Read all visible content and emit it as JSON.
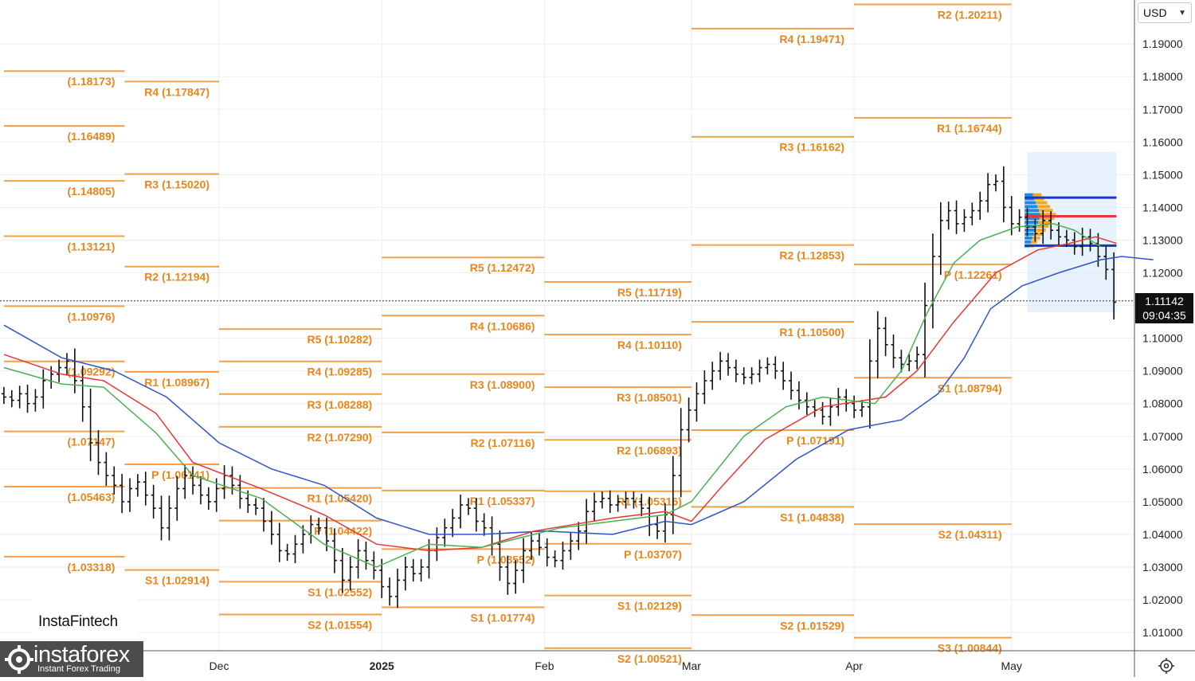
{
  "header": {
    "currency": "USD"
  },
  "current_price": {
    "value": "1.11142",
    "countdown": "09:04:35"
  },
  "branding": {
    "watermark": "InstaFintech",
    "logo_name": "instaforex",
    "logo_tagline": "Instant Forex Trading"
  },
  "colors": {
    "pivot": "#f0a04b",
    "pivot_text": "#e8861c",
    "sma_fast": "#4caf50",
    "sma_mid": "#e53935",
    "sma_slow": "#2f55c9",
    "candle": "#111111",
    "volume_profile_bg": "#d7e9fa"
  },
  "chart_data": {
    "type": "candlestick",
    "y_axis": {
      "range": [
        1.0,
        1.205
      ],
      "ticks": [
        "1.19000",
        "1.18000",
        "1.17000",
        "1.16000",
        "1.15000",
        "1.14000",
        "1.13000",
        "1.12000",
        "1.11000",
        "1.10000",
        "1.09000",
        "1.08000",
        "1.07000",
        "1.06000",
        "1.05000",
        "1.04000",
        "1.03000",
        "1.02000",
        "1.01000"
      ]
    },
    "x_axis": {
      "ticks": [
        {
          "label": "Dec",
          "day": 30,
          "bold": false
        },
        {
          "label": "2025",
          "day": 61,
          "bold": true
        },
        {
          "label": "Feb",
          "day": 92,
          "bold": false
        },
        {
          "label": "Mar",
          "day": 120,
          "bold": false
        },
        {
          "label": "Apr",
          "day": 151,
          "bold": false
        },
        {
          "label": "May",
          "day": 181,
          "bold": false
        }
      ]
    },
    "period_starts": [
      -11,
      12,
      30,
      61,
      92,
      120,
      151,
      181,
      206
    ],
    "pivots": [
      {
        "p": 0,
        "lbl": "(1.18173)",
        "v": 1.1817
      },
      {
        "p": 0,
        "lbl": "(1.16489)",
        "v": 1.1649
      },
      {
        "p": 0,
        "lbl": "(1.14805)",
        "v": 1.1481
      },
      {
        "p": 0,
        "lbl": "(1.13121)",
        "v": 1.1312
      },
      {
        "p": 0,
        "lbl": "(1.10976)",
        "v": 1.1098
      },
      {
        "p": 0,
        "lbl": "(1.09292)",
        "v": 1.0929
      },
      {
        "p": 0,
        "lbl": "(1.07147)",
        "v": 1.0715
      },
      {
        "p": 0,
        "lbl": "(1.05463)",
        "v": 1.0546
      },
      {
        "p": 0,
        "lbl": "(1.03318)",
        "v": 1.0332
      },
      {
        "p": 1,
        "lbl": "R4 (1.17847)",
        "v": 1.1785
      },
      {
        "p": 1,
        "lbl": "R3 (1.15020)",
        "v": 1.1502
      },
      {
        "p": 1,
        "lbl": "R2 (1.12194)",
        "v": 1.1219
      },
      {
        "p": 1,
        "lbl": "R1 (1.08967)",
        "v": 1.0897
      },
      {
        "p": 1,
        "lbl": "P (1.06141)",
        "v": 1.0614
      },
      {
        "p": 1,
        "lbl": "S1 (1.02914)",
        "v": 1.0291
      },
      {
        "p": 2,
        "lbl": "R5 (1.10282)",
        "v": 1.1028
      },
      {
        "p": 2,
        "lbl": "R4 (1.09285)",
        "v": 1.0929
      },
      {
        "p": 2,
        "lbl": "R3 (1.08288)",
        "v": 1.0829
      },
      {
        "p": 2,
        "lbl": "R2 (1.07290)",
        "v": 1.0729
      },
      {
        "p": 2,
        "lbl": "R1 (1.05420)",
        "v": 1.0542
      },
      {
        "p": 2,
        "lbl": "P (1.04422)",
        "v": 1.0442
      },
      {
        "p": 2,
        "lbl": "S1 (1.02552)",
        "v": 1.0255
      },
      {
        "p": 2,
        "lbl": "S2 (1.01554)",
        "v": 1.0155
      },
      {
        "p": 3,
        "lbl": "R5 (1.12472)",
        "v": 1.1247
      },
      {
        "p": 3,
        "lbl": "R4 (1.10686)",
        "v": 1.1069
      },
      {
        "p": 3,
        "lbl": "R3 (1.08900)",
        "v": 1.089
      },
      {
        "p": 3,
        "lbl": "R2 (1.07116)",
        "v": 1.0712
      },
      {
        "p": 3,
        "lbl": "R1 (1.05337)",
        "v": 1.0534
      },
      {
        "p": 3,
        "lbl": "P (1.03552)",
        "v": 1.0355
      },
      {
        "p": 3,
        "lbl": "S1 (1.01774)",
        "v": 1.0177
      },
      {
        "p": 4,
        "lbl": "R5 (1.11719)",
        "v": 1.1172
      },
      {
        "p": 4,
        "lbl": "R4 (1.10110)",
        "v": 1.1011
      },
      {
        "p": 4,
        "lbl": "R3 (1.08501)",
        "v": 1.085
      },
      {
        "p": 4,
        "lbl": "R2 (1.06893)",
        "v": 1.0689
      },
      {
        "p": 4,
        "lbl": "R1 (1.05316)",
        "v": 1.0532
      },
      {
        "p": 4,
        "lbl": "P (1.03707)",
        "v": 1.0371
      },
      {
        "p": 4,
        "lbl": "S1 (1.02129)",
        "v": 1.0213
      },
      {
        "p": 4,
        "lbl": "S2 (1.00521)",
        "v": 1.0052
      },
      {
        "p": 5,
        "lbl": "R4 (1.19471)",
        "v": 1.1947
      },
      {
        "p": 5,
        "lbl": "R3 (1.16162)",
        "v": 1.1616
      },
      {
        "p": 5,
        "lbl": "R2 (1.12853)",
        "v": 1.1285
      },
      {
        "p": 5,
        "lbl": "R1 (1.10500)",
        "v": 1.105
      },
      {
        "p": 5,
        "lbl": "P (1.07191)",
        "v": 1.0719
      },
      {
        "p": 5,
        "lbl": "S1 (1.04838)",
        "v": 1.0484
      },
      {
        "p": 5,
        "lbl": "S2 (1.01529)",
        "v": 1.0153
      },
      {
        "p": 6,
        "lbl": "R2 (1.20211)",
        "v": 1.2021
      },
      {
        "p": 6,
        "lbl": "R1 (1.16744)",
        "v": 1.1674
      },
      {
        "p": 6,
        "lbl": "P (1.12261)",
        "v": 1.1226
      },
      {
        "p": 6,
        "lbl": "S1 (1.08794)",
        "v": 1.0879
      },
      {
        "p": 6,
        "lbl": "S2 (1.04311)",
        "v": 1.0431
      },
      {
        "p": 6,
        "lbl": "S3 (1.00844)",
        "v": 1.0084
      }
    ],
    "closes": [
      1.082,
      1.081,
      1.083,
      1.08,
      1.082,
      1.087,
      1.089,
      1.091,
      1.093,
      1.087,
      1.079,
      1.068,
      1.062,
      1.058,
      1.055,
      1.05,
      1.054,
      1.056,
      1.052,
      1.048,
      1.042,
      1.048,
      1.054,
      1.058,
      1.055,
      1.052,
      1.05,
      1.054,
      1.058,
      1.055,
      1.051,
      1.049,
      1.048,
      1.044,
      1.04,
      1.035,
      1.034,
      1.037,
      1.04,
      1.043,
      1.042,
      1.038,
      1.032,
      1.026,
      1.03,
      1.035,
      1.032,
      1.029,
      1.024,
      1.021,
      1.026,
      1.03,
      1.028,
      1.03,
      1.035,
      1.039,
      1.042,
      1.045,
      1.049,
      1.048,
      1.044,
      1.042,
      1.037,
      1.03,
      1.025,
      1.029,
      1.035,
      1.038,
      1.036,
      1.033,
      1.032,
      1.035,
      1.038,
      1.041,
      1.047,
      1.05,
      1.051,
      1.049,
      1.05,
      1.051,
      1.05,
      1.048,
      1.043,
      1.041,
      1.046,
      1.058,
      1.072,
      1.078,
      1.083,
      1.087,
      1.09,
      1.093,
      1.091,
      1.089,
      1.088,
      1.089,
      1.091,
      1.092,
      1.09,
      1.087,
      1.084,
      1.081,
      1.079,
      1.078,
      1.076,
      1.079,
      1.082,
      1.08,
      1.078,
      1.079,
      1.093,
      1.103,
      1.098,
      1.094,
      1.092,
      1.093,
      1.095,
      1.11,
      1.125,
      1.136,
      1.139,
      1.135,
      1.137,
      1.139,
      1.142,
      1.147,
      1.148,
      1.14,
      1.135,
      1.137,
      1.134,
      1.132,
      1.136,
      1.133,
      1.131,
      1.13,
      1.128,
      1.131,
      1.129,
      1.125,
      1.121,
      1.111
    ],
    "sma_fast": [
      [
        -11,
        1.091
      ],
      [
        0,
        1.086
      ],
      [
        8,
        1.085
      ],
      [
        18,
        1.071
      ],
      [
        25,
        1.058
      ],
      [
        38,
        1.051
      ],
      [
        50,
        1.037
      ],
      [
        60,
        1.03
      ],
      [
        70,
        1.037
      ],
      [
        80,
        1.036
      ],
      [
        95,
        1.042
      ],
      [
        105,
        1.044
      ],
      [
        115,
        1.046
      ],
      [
        120,
        1.05
      ],
      [
        130,
        1.07
      ],
      [
        138,
        1.079
      ],
      [
        145,
        1.082
      ],
      [
        155,
        1.08
      ],
      [
        160,
        1.09
      ],
      [
        165,
        1.108
      ],
      [
        170,
        1.123
      ],
      [
        175,
        1.13
      ],
      [
        182,
        1.134
      ],
      [
        189,
        1.135
      ],
      [
        193,
        1.133
      ],
      [
        198,
        1.128
      ]
    ],
    "sma_mid": [
      [
        -11,
        1.095
      ],
      [
        0,
        1.089
      ],
      [
        8,
        1.087
      ],
      [
        18,
        1.077
      ],
      [
        25,
        1.062
      ],
      [
        38,
        1.054
      ],
      [
        50,
        1.046
      ],
      [
        60,
        1.037
      ],
      [
        70,
        1.035
      ],
      [
        80,
        1.036
      ],
      [
        90,
        1.041
      ],
      [
        105,
        1.045
      ],
      [
        115,
        1.047
      ],
      [
        120,
        1.044
      ],
      [
        126,
        1.055
      ],
      [
        134,
        1.069
      ],
      [
        145,
        1.079
      ],
      [
        157,
        1.082
      ],
      [
        163,
        1.09
      ],
      [
        170,
        1.105
      ],
      [
        178,
        1.12
      ],
      [
        186,
        1.127
      ],
      [
        192,
        1.129
      ],
      [
        197,
        1.131
      ],
      [
        201,
        1.129
      ]
    ],
    "sma_slow": [
      [
        -11,
        1.104
      ],
      [
        0,
        1.094
      ],
      [
        10,
        1.09
      ],
      [
        20,
        1.082
      ],
      [
        30,
        1.068
      ],
      [
        40,
        1.06
      ],
      [
        50,
        1.055
      ],
      [
        60,
        1.045
      ],
      [
        70,
        1.04
      ],
      [
        80,
        1.04
      ],
      [
        92,
        1.041
      ],
      [
        105,
        1.04
      ],
      [
        115,
        1.044
      ],
      [
        120,
        1.043
      ],
      [
        130,
        1.05
      ],
      [
        140,
        1.063
      ],
      [
        150,
        1.072
      ],
      [
        160,
        1.075
      ],
      [
        167,
        1.083
      ],
      [
        172,
        1.094
      ],
      [
        177,
        1.109
      ],
      [
        183,
        1.116
      ],
      [
        190,
        1.12
      ],
      [
        198,
        1.124
      ],
      [
        202,
        1.125
      ],
      [
        208,
        1.124
      ]
    ],
    "volume_profile": {
      "range": [
        1.108,
        1.157
      ],
      "value_area_high": 1.143,
      "poc": 1.1373,
      "value_area_low": 1.1283
    }
  }
}
